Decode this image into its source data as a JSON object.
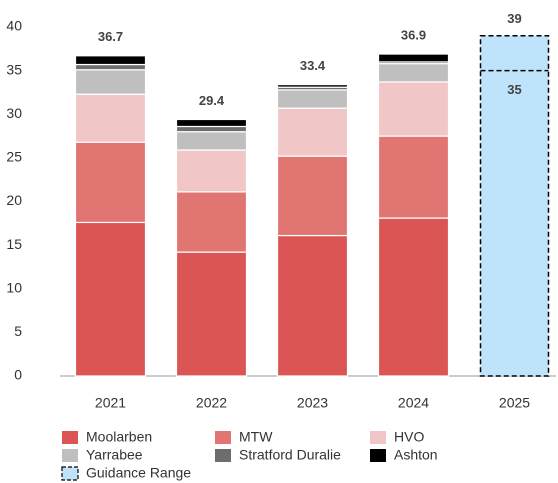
{
  "chart_data": {
    "type": "stacked_bar",
    "categories": [
      "2021",
      "2022",
      "2023",
      "2024",
      "2025"
    ],
    "series": [
      {
        "name": "Moolarben",
        "color": "#dc5555",
        "values": [
          17.6,
          14.2,
          16.1,
          18.1,
          null
        ]
      },
      {
        "name": "MTW",
        "color": "#e07572",
        "values": [
          9.2,
          6.9,
          9.1,
          9.4,
          null
        ]
      },
      {
        "name": "HVO",
        "color": "#f0c6c7",
        "values": [
          5.5,
          4.8,
          5.5,
          6.2,
          null
        ]
      },
      {
        "name": "Yarrabee",
        "color": "#bfbfbf",
        "values": [
          2.8,
          2.1,
          2.1,
          2.1,
          null
        ]
      },
      {
        "name": "Stratford Duralie",
        "color": "#6d6d6d",
        "values": [
          0.6,
          0.6,
          0.3,
          0.2,
          null
        ]
      },
      {
        "name": "Ashton",
        "color": "#000000",
        "values": [
          1.0,
          0.8,
          0.3,
          0.9,
          null
        ]
      }
    ],
    "totals": [
      36.7,
      29.4,
      33.4,
      36.9,
      null
    ],
    "guidance": {
      "name": "Guidance Range",
      "color": "#bfe3fb",
      "low": [
        null,
        null,
        null,
        null,
        35
      ],
      "high": [
        null,
        null,
        null,
        null,
        39
      ]
    },
    "ylim": [
      0,
      40
    ],
    "yticks": [
      0,
      5,
      10,
      15,
      20,
      25,
      30,
      35,
      40
    ],
    "grid": false
  }
}
